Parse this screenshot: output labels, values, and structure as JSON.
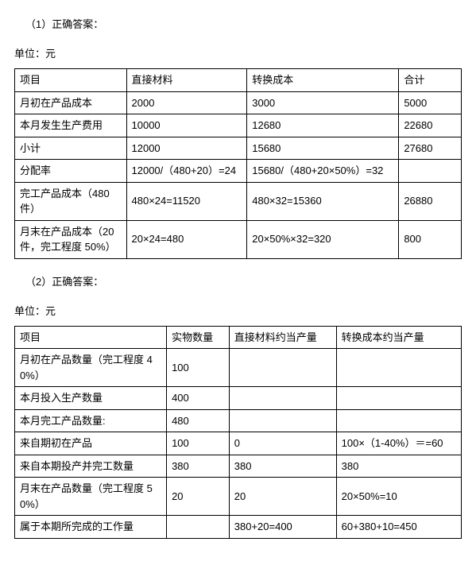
{
  "section1": {
    "title": "（1）正确答案：",
    "unit": "单位：元",
    "headers": [
      "项目",
      "直接材料",
      "转换成本",
      "合计"
    ],
    "rows": [
      [
        "月初在产品成本",
        "2000",
        "3000",
        "5000"
      ],
      [
        "本月发生生产费用",
        "10000",
        "12680",
        "22680"
      ],
      [
        "小计",
        "12000",
        "15680",
        "27680"
      ],
      [
        "分配率",
        "12000/（480+20）=24",
        "15680/（480+20×50%）=32",
        ""
      ],
      [
        "完工产品成本（480 件）",
        "480×24=11520",
        "480×32=15360",
        "26880"
      ],
      [
        "月末在产品成本（20 件，完工程度 50%）",
        "20×24=480",
        "20×50%×32=320",
        "800"
      ]
    ]
  },
  "section2": {
    "title": "（2）正确答案：",
    "unit": "单位：元",
    "headers": [
      "项目",
      "实物数量",
      "直接材料约当产量",
      "转换成本约当产量"
    ],
    "rows": [
      [
        "月初在产品数量（完工程度 40%）",
        "100",
        "",
        ""
      ],
      [
        "本月投入生产数量",
        "400",
        "",
        ""
      ],
      [
        "本月完工产品数量:",
        "480",
        "",
        ""
      ],
      [
        "来自期初在产品",
        "100",
        "0",
        "100×（1-40%）＝=60"
      ],
      [
        "来自本期投产并完工数量",
        "380",
        "380",
        "380"
      ],
      [
        "月末在产品数量（完工程度 50%）",
        "20",
        "20",
        "20×50%=10"
      ],
      [
        "属于本期所完成的工作量",
        "",
        "380+20=400",
        "60+380+10=450"
      ]
    ]
  }
}
